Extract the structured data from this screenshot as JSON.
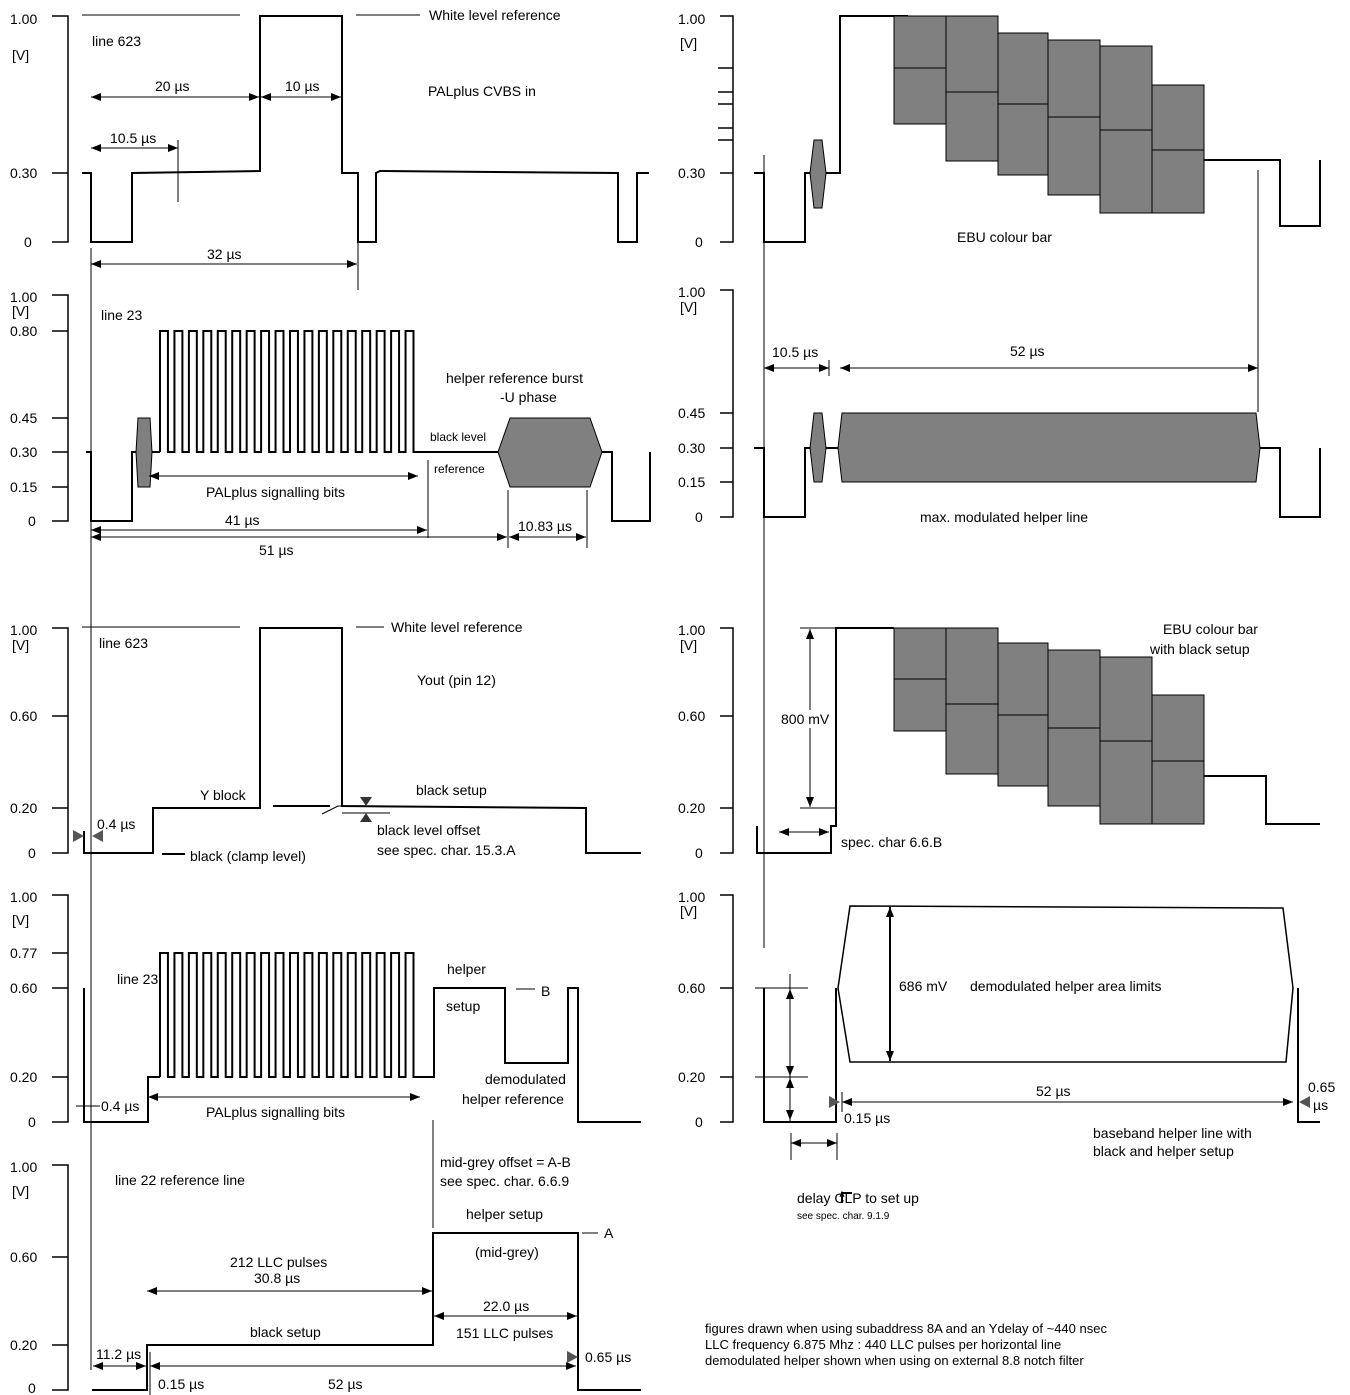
{
  "unit": "[V]",
  "p1": {
    "ticks": [
      "1.00",
      "0.30",
      "0"
    ],
    "line": "line 623",
    "white_ref": "White level reference",
    "title": "PALplus CVBS in",
    "d20": "20 µs",
    "d10": "10 µs",
    "d10_5": "10.5 µs",
    "d32": "32 µs"
  },
  "p2": {
    "ticks": [
      "1.00",
      "0.80",
      "0.45",
      "0.30",
      "0.15",
      "0"
    ],
    "line": "line 23",
    "burst_title": "helper reference burst",
    "burst_phase": "-U phase",
    "black_level": "black level",
    "reference": "reference",
    "bits": "PALplus signalling bits",
    "d41": "41 µs",
    "d51": "51 µs",
    "d10_83": "10.83 µs"
  },
  "p3": {
    "ticks": [
      "1.00",
      "0.60",
      "0.20",
      "0"
    ],
    "line": "line 623",
    "white_ref": "White level reference",
    "title": "Yout (pin 12)",
    "y_block": "Y block",
    "black_setup": "black setup",
    "offset1": "black level offset",
    "offset2": "see spec. char. 15.3.A",
    "d0_4": "0.4 µs",
    "clamp": "black (clamp level)"
  },
  "p4": {
    "ticks": [
      "1.00",
      "0.77",
      "0.60",
      "0.20",
      "0"
    ],
    "line": "line 23",
    "helper": "helper",
    "setup": "setup",
    "B": "B",
    "demod1": "demodulated",
    "demod2": "helper reference",
    "d0_4": "0.4 µs",
    "bits": "PALplus signalling bits"
  },
  "p5": {
    "ticks": [
      "1.00",
      "0.60",
      "0.20",
      "0"
    ],
    "line": "line 22  reference line",
    "mid1": "mid-grey offset = A-B",
    "mid2": "see spec. char. 6.6.9",
    "helper_setup": "helper setup",
    "mid_grey": "(mid-grey)",
    "A": "A",
    "llc212": "212 LLC pulses",
    "d30_8": "30.8 µs",
    "d22": "22.0 µs",
    "llc151": "151 LLC pulses",
    "black_setup": "black setup",
    "d11_2": "11.2 µs",
    "d0_15": "0.15 µs",
    "d52": "52 µs",
    "d0_65": "0.65 µs"
  },
  "q1": {
    "ticks": [
      "1.00",
      "0.30",
      "0"
    ],
    "title": "EBU colour bar"
  },
  "q2": {
    "ticks": [
      "1.00",
      "0.45",
      "0.30",
      "0.15",
      "0"
    ],
    "d10_5": "10.5 µs",
    "d52": "52 µs",
    "title": "max. modulated helper line"
  },
  "q3": {
    "ticks": [
      "1.00",
      "0.60",
      "0.20",
      "0"
    ],
    "title1": "EBU colour bar",
    "title2": "with black setup",
    "d800": "800 mV",
    "spec": "spec. char 6.6.B"
  },
  "q4": {
    "ticks": [
      "1.00",
      "0.60",
      "0.20",
      "0"
    ],
    "d686": "686 mV",
    "area": "demodulated helper area limits",
    "d52": "52 µs",
    "d0_65a": "0.65",
    "d0_65b": "µs",
    "d0_15": "0.15 µs",
    "base1": "baseband helper line with",
    "base2": "black and helper setup"
  },
  "delay": {
    "line1": "delay  CLP to set up",
    "line2": "see spec. char. 9.1.9"
  },
  "notes": [
    "figures drawn when using subaddress 8A and an Ydelay of ~440 nsec",
    "LLC frequency 6.875 Mhz : 440 LLC pulses per horizontal line",
    "demodulated helper shown when using on external 8.8 notch filter"
  ]
}
